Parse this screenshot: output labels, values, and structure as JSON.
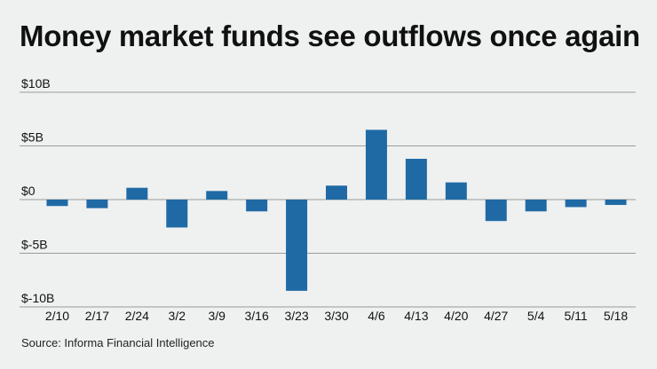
{
  "title": "Money market funds see outflows once again",
  "source": "Source: Informa Financial Intelligence",
  "colors": {
    "bar": "#1f6aa5",
    "grid": "#9a9a9a",
    "background": "#eff1f1"
  },
  "chart_data": {
    "type": "bar",
    "title": "Money market funds see outflows once again",
    "xlabel": "",
    "ylabel": "",
    "categories": [
      "2/10",
      "2/17",
      "2/24",
      "3/2",
      "3/9",
      "3/16",
      "3/23",
      "3/30",
      "4/6",
      "4/13",
      "4/20",
      "4/27",
      "5/4",
      "5/11",
      "5/18"
    ],
    "values": [
      -0.6,
      -0.8,
      1.1,
      -2.6,
      0.8,
      -1.1,
      -8.5,
      1.3,
      6.5,
      3.8,
      1.6,
      -2.0,
      -1.1,
      -0.7,
      -0.5
    ],
    "ylim": [
      -10,
      10
    ],
    "yticks": [
      10,
      5,
      0,
      -5,
      -10
    ],
    "ytick_labels": [
      "$10B",
      "$5B",
      "$0",
      "$-5B",
      "$-10B"
    ],
    "grid": true,
    "unit": "billions of dollars"
  }
}
